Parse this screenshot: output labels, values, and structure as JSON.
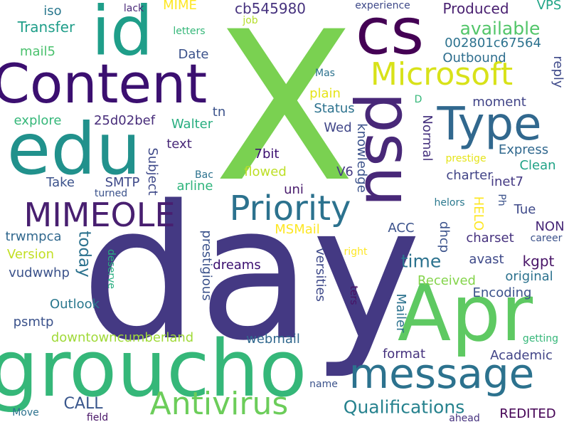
{
  "words": [
    {
      "text": "X",
      "color": "#7ad151"
    },
    {
      "text": "day",
      "color": "#443983"
    },
    {
      "text": "groucho",
      "color": "#35b779"
    },
    {
      "text": "Apr",
      "color": "#5ec962"
    },
    {
      "text": "Content",
      "color": "#3b0f70"
    },
    {
      "text": "edu",
      "color": "#21918c"
    },
    {
      "text": "id",
      "color": "#1f9e89"
    },
    {
      "text": "cs",
      "color": "#440154"
    },
    {
      "text": "psu",
      "color": "#482878"
    },
    {
      "text": "Type",
      "color": "#31688e"
    },
    {
      "text": "message",
      "color": "#2c728e"
    },
    {
      "text": "Microsoft",
      "color": "#d8e219"
    },
    {
      "text": "MIMEOLE",
      "color": "#481f70"
    },
    {
      "text": "Priority",
      "color": "#2c728e"
    },
    {
      "text": "Antivirus",
      "color": "#6ccd5a"
    },
    {
      "text": "Qualifications",
      "color": "#26828e"
    },
    {
      "text": "available",
      "color": "#52c569"
    },
    {
      "text": "cb545980",
      "color": "#46327e"
    },
    {
      "text": "Transfer",
      "color": "#1f9e89"
    },
    {
      "text": "iso",
      "color": "#2a788e"
    },
    {
      "text": "mail5",
      "color": "#4ac16d"
    },
    {
      "text": "MIME",
      "color": "#fde725"
    },
    {
      "text": "lack",
      "color": "#482878"
    },
    {
      "text": "Produced",
      "color": "#481f70"
    },
    {
      "text": "experience",
      "color": "#3e4989"
    },
    {
      "text": "VPS",
      "color": "#20a486"
    },
    {
      "text": "letters",
      "color": "#35b779"
    },
    {
      "text": "job",
      "color": "#b5de2b"
    },
    {
      "text": "002801c67564",
      "color": "#2c728e"
    },
    {
      "text": "Outbound",
      "color": "#2e6e8e"
    },
    {
      "text": "Date",
      "color": "#3b528b"
    },
    {
      "text": "reply",
      "color": "#3e4989"
    },
    {
      "text": "Mas",
      "color": "#2c728e"
    },
    {
      "text": "plain",
      "color": "#e5e419"
    },
    {
      "text": "moment",
      "color": "#414487"
    },
    {
      "text": "Status",
      "color": "#2c728e"
    },
    {
      "text": "explore",
      "color": "#35b779"
    },
    {
      "text": "25d02bef",
      "color": "#472c7a"
    },
    {
      "text": "Walter",
      "color": "#28ae80"
    },
    {
      "text": "tn",
      "color": "#3b528b"
    },
    {
      "text": "Wed",
      "color": "#404688"
    },
    {
      "text": "Normal",
      "color": "#46327e"
    },
    {
      "text": "text",
      "color": "#482878"
    },
    {
      "text": "Subject",
      "color": "#3e4989"
    },
    {
      "text": "7bit",
      "color": "#3b0f70"
    },
    {
      "text": "knowledge",
      "color": "#3b528b"
    },
    {
      "text": "Express",
      "color": "#30688e"
    },
    {
      "text": "Clean",
      "color": "#20a386"
    },
    {
      "text": "SMTP",
      "color": "#3e4989"
    },
    {
      "text": "flowed",
      "color": "#bddf26"
    },
    {
      "text": "V6",
      "color": "#443983"
    },
    {
      "text": "charter",
      "color": "#414487"
    },
    {
      "text": "inet7",
      "color": "#443983"
    },
    {
      "text": "Take",
      "color": "#3b528b"
    },
    {
      "text": "arline",
      "color": "#2fb47c"
    },
    {
      "text": "uni",
      "color": "#481a6c"
    },
    {
      "text": "turned",
      "color": "#3b528b"
    },
    {
      "text": "Bac",
      "color": "#2c728e"
    },
    {
      "text": "Tue",
      "color": "#3e4989"
    },
    {
      "text": "helors",
      "color": "#2a788e"
    },
    {
      "text": "Ph",
      "color": "#3b528b"
    },
    {
      "text": "HELO",
      "color": "#fde725"
    },
    {
      "text": "dhcp",
      "color": "#3b528b"
    },
    {
      "text": "prestige",
      "color": "#e5e419"
    },
    {
      "text": "NON",
      "color": "#482878"
    },
    {
      "text": "trwmpca",
      "color": "#31688e"
    },
    {
      "text": "today",
      "color": "#2c728e"
    },
    {
      "text": "MSMail",
      "color": "#fde725"
    },
    {
      "text": "ACC",
      "color": "#3b528b"
    },
    {
      "text": "charset",
      "color": "#46327e"
    },
    {
      "text": "career",
      "color": "#3b528b"
    },
    {
      "text": "Version",
      "color": "#c2df23"
    },
    {
      "text": "prestigious",
      "color": "#3b528b"
    },
    {
      "text": "right",
      "color": "#fde725"
    },
    {
      "text": "time",
      "color": "#2c728e"
    },
    {
      "text": "kgpt",
      "color": "#481467"
    },
    {
      "text": "vudwwhp",
      "color": "#3b528b"
    },
    {
      "text": "deserve",
      "color": "#28ae80"
    },
    {
      "text": "dreams",
      "color": "#3b0f70"
    },
    {
      "text": "versities",
      "color": "#3e4989"
    },
    {
      "text": "avast",
      "color": "#3e4989"
    },
    {
      "text": "original",
      "color": "#2c728e"
    },
    {
      "text": "Received",
      "color": "#84d44b"
    },
    {
      "text": "Outlook",
      "color": "#2a788e"
    },
    {
      "text": "Encoding",
      "color": "#3b528b"
    },
    {
      "text": "Mailer",
      "color": "#2c728e"
    },
    {
      "text": "ters",
      "color": "#471063"
    },
    {
      "text": "psmtp",
      "color": "#3b528b"
    },
    {
      "text": "getting",
      "color": "#35b779"
    },
    {
      "text": "downtowncumberland",
      "color": "#a0da39"
    },
    {
      "text": "webmail",
      "color": "#31688e"
    },
    {
      "text": "Academic",
      "color": "#414487"
    },
    {
      "text": "format",
      "color": "#46327e"
    },
    {
      "text": "CALL",
      "color": "#39568c"
    },
    {
      "text": "name",
      "color": "#3b528b"
    },
    {
      "text": "Move",
      "color": "#2c728e"
    },
    {
      "text": "field",
      "color": "#481467"
    },
    {
      "text": "ahead",
      "color": "#46327e"
    },
    {
      "text": "REDITED",
      "color": "#440154"
    },
    {
      "text": "D",
      "color": "#35b779"
    }
  ]
}
